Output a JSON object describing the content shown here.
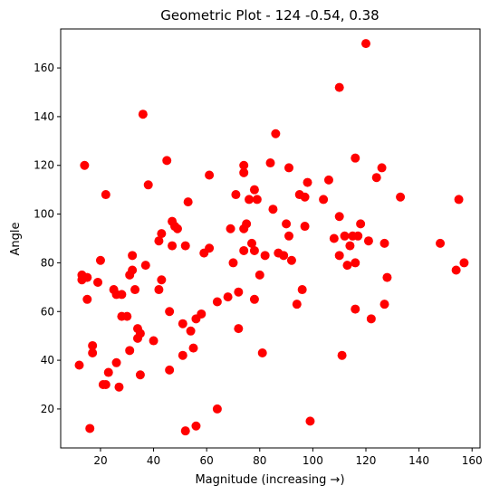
{
  "chart_data": {
    "type": "scatter",
    "title": "Geometric Plot - 124 -0.54, 0.38",
    "xlabel": "Magnitude (increasing →)",
    "ylabel": "Angle",
    "xlim": [
      5,
      163
    ],
    "ylim": [
      4,
      176
    ],
    "xticks": [
      20,
      40,
      60,
      80,
      100,
      120,
      140,
      160
    ],
    "yticks": [
      20,
      40,
      60,
      80,
      100,
      120,
      140,
      160
    ],
    "grid": false,
    "marker_color": "#ff0000",
    "points": [
      [
        13,
        75
      ],
      [
        13,
        73
      ],
      [
        14,
        120
      ],
      [
        15,
        74
      ],
      [
        15,
        65
      ],
      [
        16,
        12
      ],
      [
        17,
        43
      ],
      [
        17,
        46
      ],
      [
        12,
        38
      ],
      [
        19,
        72
      ],
      [
        20,
        81
      ],
      [
        21,
        30
      ],
      [
        22,
        108
      ],
      [
        22,
        30
      ],
      [
        23,
        35
      ],
      [
        25,
        69
      ],
      [
        26,
        67
      ],
      [
        26,
        39
      ],
      [
        27,
        29
      ],
      [
        28,
        67
      ],
      [
        28,
        58
      ],
      [
        30,
        58
      ],
      [
        31,
        44
      ],
      [
        31,
        75
      ],
      [
        32,
        77
      ],
      [
        32,
        83
      ],
      [
        33,
        69
      ],
      [
        34,
        53
      ],
      [
        34,
        49
      ],
      [
        35,
        34
      ],
      [
        35,
        51
      ],
      [
        36,
        141
      ],
      [
        37,
        79
      ],
      [
        38,
        112
      ],
      [
        40,
        48
      ],
      [
        42,
        89
      ],
      [
        42,
        69
      ],
      [
        43,
        92
      ],
      [
        43,
        73
      ],
      [
        45,
        122
      ],
      [
        46,
        60
      ],
      [
        46,
        36
      ],
      [
        47,
        97
      ],
      [
        47,
        87
      ],
      [
        48,
        95
      ],
      [
        49,
        94
      ],
      [
        51,
        55
      ],
      [
        51,
        42
      ],
      [
        52,
        87
      ],
      [
        52,
        11
      ],
      [
        53,
        105
      ],
      [
        54,
        52
      ],
      [
        55,
        45
      ],
      [
        56,
        57
      ],
      [
        56,
        13
      ],
      [
        58,
        59
      ],
      [
        59,
        84
      ],
      [
        61,
        86
      ],
      [
        61,
        116
      ],
      [
        64,
        64
      ],
      [
        64,
        20
      ],
      [
        68,
        66
      ],
      [
        69,
        94
      ],
      [
        70,
        80
      ],
      [
        71,
        108
      ],
      [
        72,
        68
      ],
      [
        72,
        53
      ],
      [
        74,
        117
      ],
      [
        74,
        120
      ],
      [
        74,
        94
      ],
      [
        74,
        85
      ],
      [
        75,
        96
      ],
      [
        76,
        106
      ],
      [
        77,
        88
      ],
      [
        78,
        85
      ],
      [
        78,
        65
      ],
      [
        78,
        110
      ],
      [
        79,
        106
      ],
      [
        80,
        75
      ],
      [
        81,
        43
      ],
      [
        82,
        83
      ],
      [
        84,
        121
      ],
      [
        85,
        102
      ],
      [
        86,
        133
      ],
      [
        87,
        84
      ],
      [
        89,
        83
      ],
      [
        90,
        96
      ],
      [
        91,
        119
      ],
      [
        91,
        91
      ],
      [
        92,
        81
      ],
      [
        94,
        63
      ],
      [
        95,
        108
      ],
      [
        96,
        69
      ],
      [
        97,
        95
      ],
      [
        97,
        107
      ],
      [
        98,
        113
      ],
      [
        99,
        15
      ],
      [
        104,
        106
      ],
      [
        106,
        114
      ],
      [
        108,
        90
      ],
      [
        110,
        99
      ],
      [
        110,
        83
      ],
      [
        110,
        152
      ],
      [
        111,
        42
      ],
      [
        112,
        91
      ],
      [
        113,
        79
      ],
      [
        114,
        87
      ],
      [
        115,
        91
      ],
      [
        116,
        61
      ],
      [
        116,
        80
      ],
      [
        116,
        123
      ],
      [
        117,
        91
      ],
      [
        118,
        96
      ],
      [
        120,
        170
      ],
      [
        121,
        89
      ],
      [
        122,
        57
      ],
      [
        124,
        115
      ],
      [
        126,
        119
      ],
      [
        127,
        88
      ],
      [
        127,
        63
      ],
      [
        128,
        74
      ],
      [
        133,
        107
      ],
      [
        148,
        88
      ],
      [
        154,
        77
      ],
      [
        155,
        106
      ],
      [
        157,
        80
      ]
    ]
  }
}
